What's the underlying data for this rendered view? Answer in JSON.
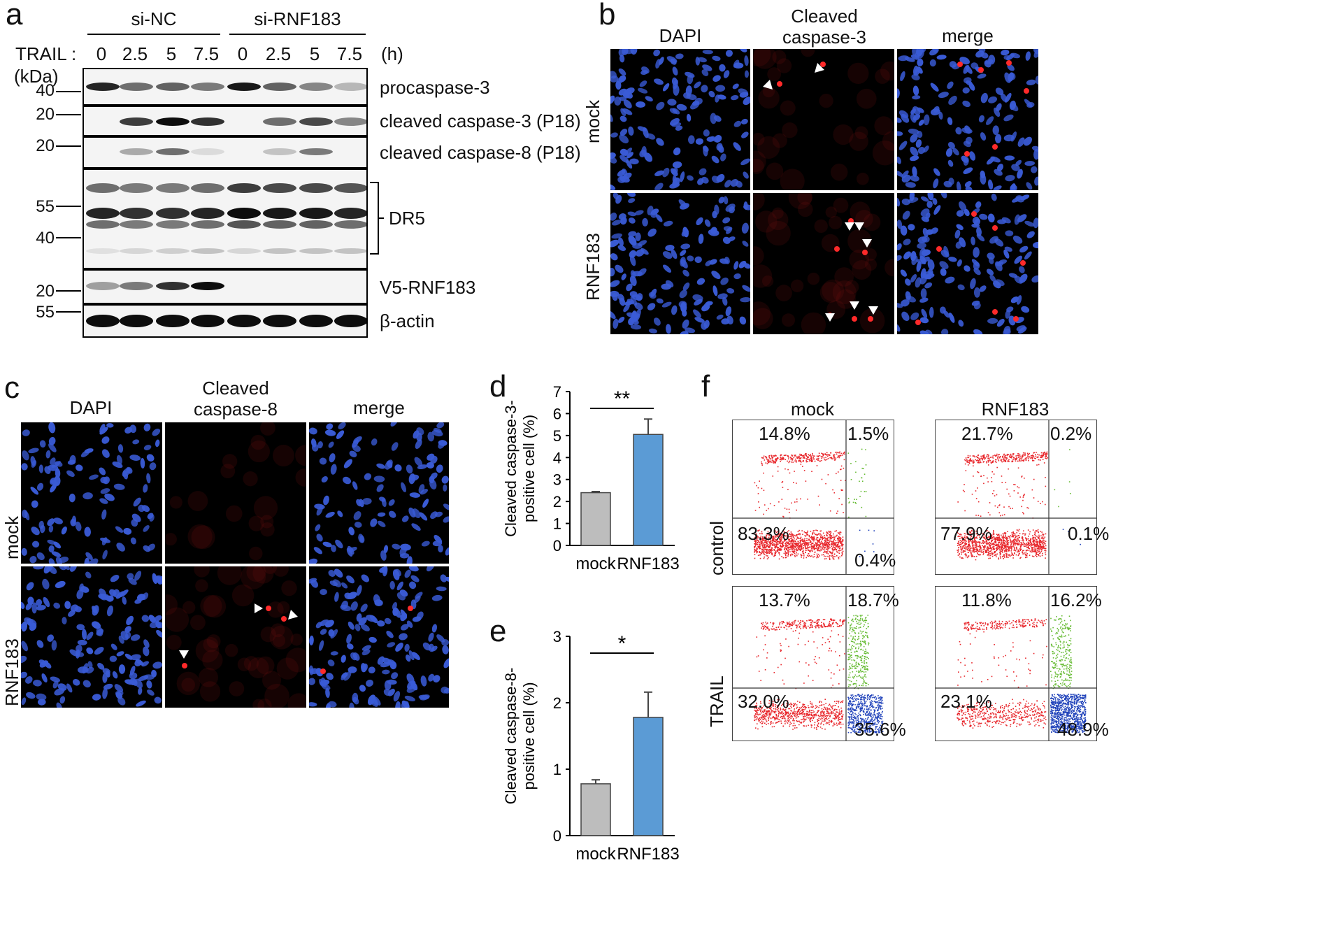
{
  "panels": {
    "a": "a",
    "b": "b",
    "c": "c",
    "d": "d",
    "e": "e",
    "f": "f"
  },
  "panel_a": {
    "group1": "si-NC",
    "group2": "si-RNF183",
    "trail_label": "TRAIL :",
    "times": [
      "0",
      "2.5",
      "5",
      "7.5",
      "0",
      "2.5",
      "5",
      "7.5"
    ],
    "time_unit": "(h)",
    "kda": "(kDa)",
    "rows": [
      {
        "name": "procaspase-3",
        "mw": [
          "40"
        ]
      },
      {
        "name": "cleaved caspase-3 (P18)",
        "mw": [
          "20"
        ]
      },
      {
        "name": "cleaved caspase-8 (P18)",
        "mw": [
          "20"
        ]
      },
      {
        "name": "DR5",
        "mw": [
          "55",
          "40"
        ]
      },
      {
        "name": "V5-RNF183",
        "mw": [
          "20"
        ]
      },
      {
        "name": "β-actin",
        "mw": [
          "55"
        ]
      }
    ]
  },
  "panel_b": {
    "col1": "DAPI",
    "col2_l1": "Cleaved",
    "col2_l2": "caspase-3",
    "col3": "merge",
    "row1": "mock",
    "row2": "RNF183"
  },
  "panel_c": {
    "col1": "DAPI",
    "col2_l1": "Cleaved",
    "col2_l2": "caspase-8",
    "col3": "merge",
    "row1": "mock",
    "row2": "RNF183"
  },
  "chart_data": [
    {
      "type": "bar",
      "panel": "d",
      "categories": [
        "mock",
        "RNF183"
      ],
      "values": [
        2.4,
        5.05
      ],
      "errors": [
        0.05,
        0.7
      ],
      "colors": [
        "#bdbdbd",
        "#5b9bd5"
      ],
      "ylabel_l1": "Cleaved caspase-3-",
      "ylabel_l2": "positive cell (%)",
      "ylim": [
        0,
        7
      ],
      "yticks": [
        "0",
        "1",
        "2",
        "3",
        "4",
        "5",
        "6",
        "7"
      ],
      "significance": "**"
    },
    {
      "type": "bar",
      "panel": "e",
      "categories": [
        "mock",
        "RNF183"
      ],
      "values": [
        0.78,
        1.78
      ],
      "errors": [
        0.06,
        0.38
      ],
      "colors": [
        "#bdbdbd",
        "#5b9bd5"
      ],
      "ylabel_l1": "Cleaved caspase-8-",
      "ylabel_l2": "positive cell (%)",
      "ylim": [
        0,
        3
      ],
      "yticks": [
        "0",
        "1",
        "2",
        "3"
      ],
      "significance": "*"
    }
  ],
  "panel_f": {
    "col1": "mock",
    "col2": "RNF183",
    "row1": "control",
    "row2": "TRAIL",
    "plots": [
      {
        "q1": "14.8%",
        "q2": "1.5%",
        "q3": "83.3%",
        "q4": "0.4%"
      },
      {
        "q1": "21.7%",
        "q2": "0.2%",
        "q3": "77.9%",
        "q4": "0.1%"
      },
      {
        "q1": "13.7%",
        "q2": "18.7%",
        "q3": "32.0%",
        "q4": "35.6%"
      },
      {
        "q1": "11.8%",
        "q2": "16.2%",
        "q3": "23.1%",
        "q4": "48.9%"
      }
    ]
  }
}
